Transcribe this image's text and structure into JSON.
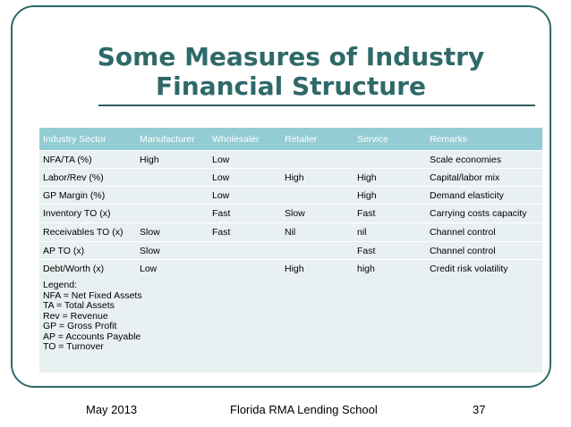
{
  "slide": {
    "title_line1": "Some Measures of Industry",
    "title_line2": "Financial Structure"
  },
  "table": {
    "headers": [
      "Industry Sector",
      "Manufacturer",
      "Wholesaler",
      "Retailer",
      "Service",
      "Remarks"
    ],
    "rows": [
      [
        "NFA/TA (%)",
        "High",
        "Low",
        "",
        "",
        "Scale economies"
      ],
      [
        "Labor/Rev (%)",
        "",
        "Low",
        "High",
        "High",
        "Capital/labor mix"
      ],
      [
        "GP Margin (%)",
        "",
        "Low",
        "",
        "High",
        "Demand elasticity"
      ],
      [
        "Inventory TO (x)",
        "",
        "Fast",
        "Slow",
        "Fast",
        "Carrying costs capacity"
      ],
      [
        "Receivables TO (x)",
        "Slow",
        "Fast",
        "Nil",
        "nil",
        "Channel control"
      ],
      [
        "AP TO (x)",
        "Slow",
        "",
        "",
        "Fast",
        "Channel control"
      ],
      [
        "Debt/Worth (x)",
        "Low",
        "",
        "High",
        "high",
        "Credit risk volatility"
      ]
    ]
  },
  "legend": {
    "heading": "Legend:",
    "items": [
      "NFA = Net Fixed Assets",
      "TA = Total Assets",
      "Rev = Revenue",
      "GP = Gross Profit",
      "AP = Accounts Payable",
      "TO = Turnover"
    ]
  },
  "footer": {
    "date": "May 2013",
    "org": "Florida RMA Lending School",
    "page": "37"
  }
}
